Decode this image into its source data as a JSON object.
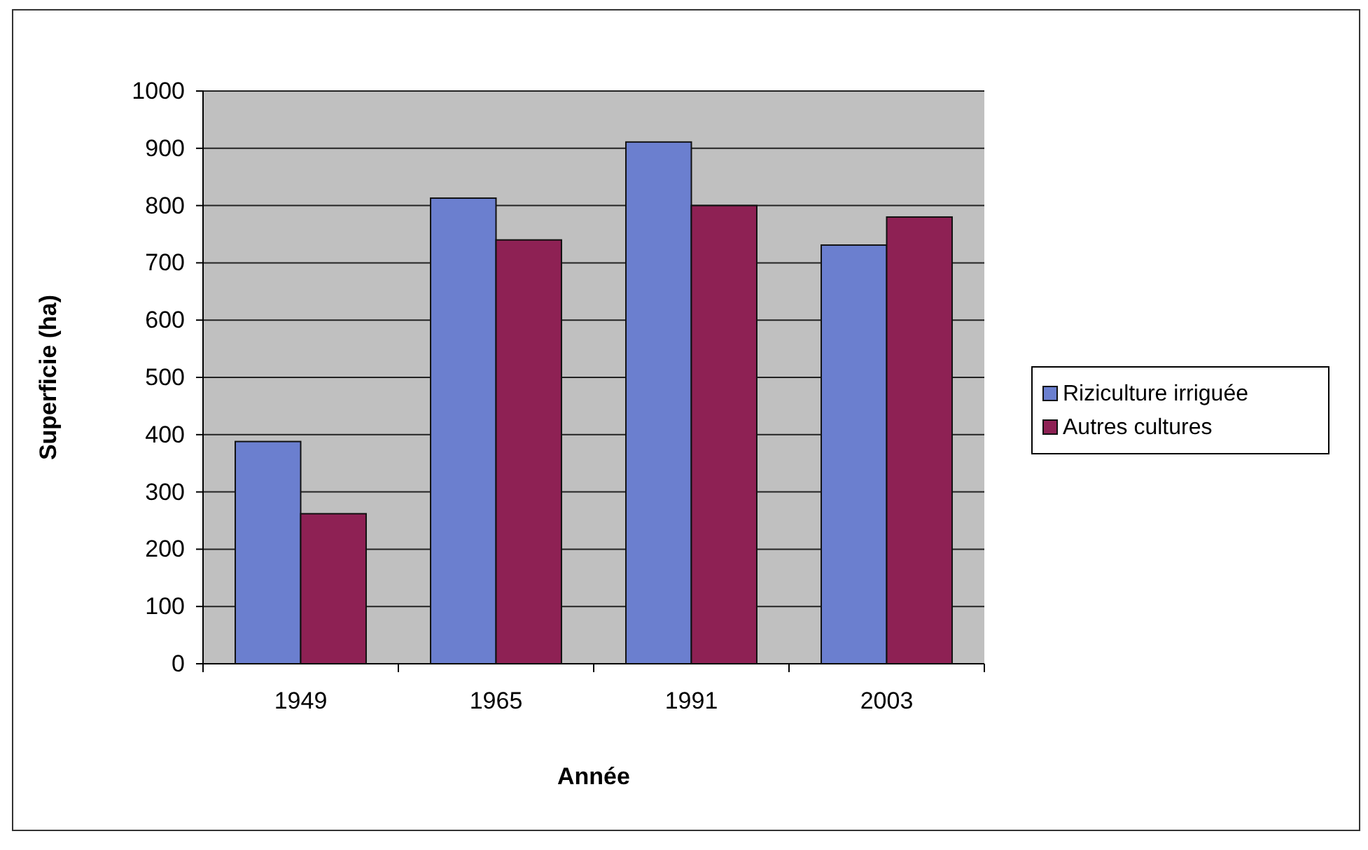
{
  "chart_data": {
    "type": "bar",
    "xlabel": "Année",
    "ylabel": "Superficie (ha)",
    "categories": [
      "1949",
      "1965",
      "1991",
      "2003"
    ],
    "series": [
      {
        "name": "Riziculture irriguée",
        "color": "#6b7fcf",
        "values": [
          388,
          813,
          911,
          731
        ]
      },
      {
        "name": "Autres cultures",
        "color": "#8e2154",
        "values": [
          262,
          740,
          800,
          780
        ]
      }
    ],
    "ylim": [
      0,
      1000
    ],
    "yticks": [
      0,
      100,
      200,
      300,
      400,
      500,
      600,
      700,
      800,
      900,
      1000
    ],
    "grid": "y",
    "legend": "right"
  }
}
